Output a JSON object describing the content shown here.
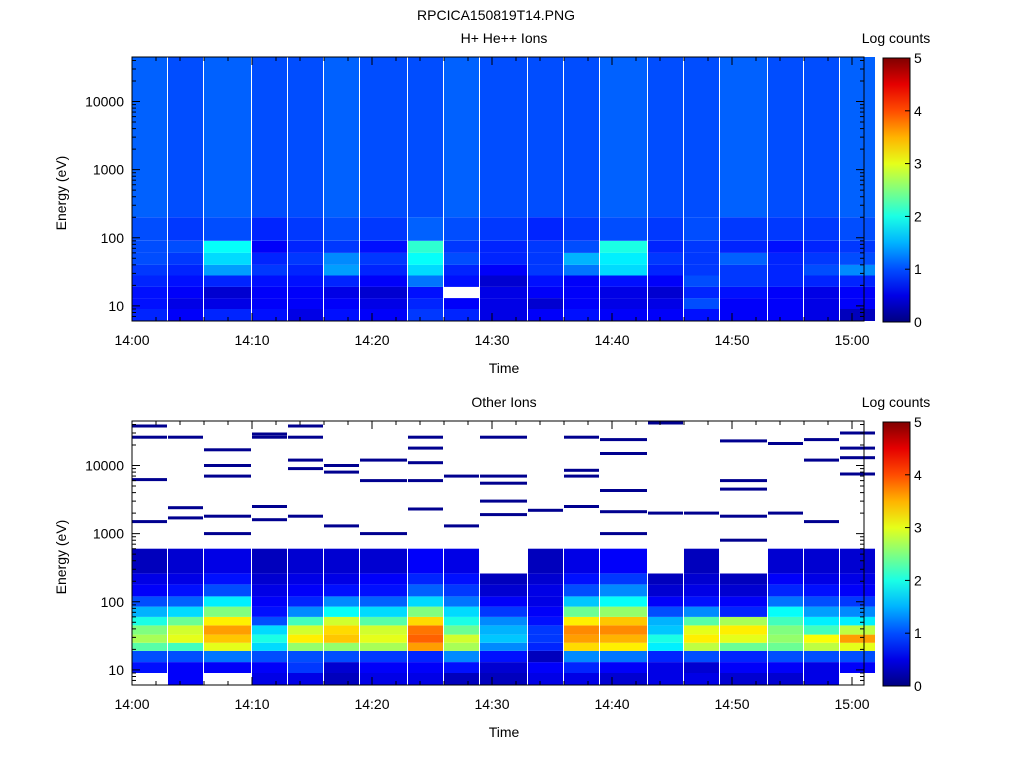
{
  "figure_title": "RPCICA150819T14.PNG",
  "chart_data": [
    {
      "type": "heatmap",
      "title": "H+ He++ Ions",
      "xlabel": "Time",
      "ylabel": "Energy (eV)",
      "yscale": "log",
      "xlim": [
        "14:00",
        "15:01"
      ],
      "ylim": [
        6,
        45000
      ],
      "x_ticks": [
        "14:00",
        "14:10",
        "14:20",
        "14:30",
        "14:40",
        "14:50",
        "15:00"
      ],
      "y_ticks": [
        "10",
        "100",
        "1000",
        "10000"
      ],
      "colorbar": {
        "label": "Log counts",
        "range": [
          0,
          5
        ],
        "ticks": [
          "0",
          "1",
          "2",
          "3",
          "4",
          "5"
        ]
      },
      "time_bins": [
        "14:00",
        "14:03",
        "14:06",
        "14:10",
        "14:13",
        "14:16",
        "14:19",
        "14:23",
        "14:26",
        "14:29",
        "14:33",
        "14:36",
        "14:39",
        "14:43",
        "14:46",
        "14:49",
        "14:53",
        "14:56",
        "14:59"
      ],
      "energy_bands_ev": [
        [
          6,
          9
        ],
        [
          9,
          13
        ],
        [
          13,
          19
        ],
        [
          19,
          28
        ],
        [
          28,
          40
        ],
        [
          40,
          60
        ],
        [
          60,
          90
        ],
        [
          90,
          200
        ],
        [
          200,
          45000
        ]
      ],
      "values": [
        [
          0.8,
          0.6,
          0.8,
          0.7,
          0.5,
          0.7,
          0.6,
          0.9,
          0.8,
          0.5,
          0.6,
          0.7,
          0.6,
          0.6,
          0.7,
          0.6,
          0.6,
          0.5,
          0.3
        ],
        [
          0.7,
          0.5,
          0.5,
          0.6,
          0.6,
          0.6,
          0.5,
          0.8,
          0.6,
          0.5,
          0.4,
          0.6,
          0.5,
          0.5,
          1.0,
          0.6,
          0.6,
          0.5,
          0.6
        ],
        [
          0.7,
          0.6,
          0.4,
          0.6,
          0.6,
          0.5,
          0.4,
          0.7,
          null,
          0.5,
          0.6,
          0.6,
          0.5,
          0.4,
          0.8,
          0.7,
          0.6,
          0.5,
          0.6
        ],
        [
          0.8,
          0.7,
          0.8,
          0.7,
          0.7,
          0.8,
          0.6,
          1.2,
          0.7,
          0.4,
          0.7,
          0.6,
          0.7,
          0.6,
          1.0,
          0.9,
          0.8,
          0.8,
          0.8
        ],
        [
          0.9,
          0.8,
          1.4,
          0.9,
          0.8,
          1.4,
          0.8,
          1.7,
          0.8,
          0.6,
          0.9,
          1.2,
          1.7,
          0.8,
          0.9,
          0.9,
          0.8,
          1.0,
          1.3
        ],
        [
          1.0,
          0.9,
          1.7,
          0.8,
          0.9,
          1.3,
          0.9,
          1.9,
          1.0,
          0.8,
          0.9,
          1.5,
          1.8,
          0.9,
          0.9,
          1.1,
          0.8,
          0.9,
          1.0
        ],
        [
          1.0,
          1.0,
          1.9,
          0.6,
          0.8,
          0.9,
          0.7,
          2.1,
          0.9,
          0.8,
          0.9,
          1.0,
          2.0,
          0.8,
          0.9,
          0.8,
          0.7,
          0.8,
          0.9
        ],
        [
          1.0,
          0.9,
          1.0,
          0.8,
          0.9,
          1.0,
          0.9,
          1.1,
          1.0,
          0.9,
          0.8,
          0.9,
          1.0,
          0.9,
          1.0,
          0.9,
          0.9,
          0.9,
          1.0
        ],
        [
          1.1,
          1.0,
          1.1,
          1.0,
          1.0,
          1.1,
          1.0,
          1.0,
          1.1,
          1.0,
          1.0,
          1.0,
          1.1,
          1.0,
          1.0,
          1.1,
          1.0,
          1.0,
          1.1
        ]
      ]
    },
    {
      "type": "heatmap",
      "title": "Other Ions",
      "xlabel": "Time",
      "ylabel": "Energy (eV)",
      "yscale": "log",
      "xlim": [
        "14:00",
        "15:01"
      ],
      "ylim": [
        6,
        45000
      ],
      "x_ticks": [
        "14:00",
        "14:10",
        "14:20",
        "14:30",
        "14:40",
        "14:50",
        "15:00"
      ],
      "y_ticks": [
        "10",
        "100",
        "1000",
        "10000"
      ],
      "colorbar": {
        "label": "Log counts",
        "range": [
          0,
          5
        ],
        "ticks": [
          "0",
          "1",
          "2",
          "3",
          "4",
          "5"
        ]
      },
      "time_bins": [
        "14:00",
        "14:03",
        "14:06",
        "14:10",
        "14:13",
        "14:16",
        "14:19",
        "14:23",
        "14:26",
        "14:29",
        "14:33",
        "14:36",
        "14:39",
        "14:43",
        "14:46",
        "14:49",
        "14:53",
        "14:56",
        "14:59"
      ],
      "energy_bands_ev": [
        [
          6,
          9
        ],
        [
          9,
          13
        ],
        [
          13,
          19
        ],
        [
          19,
          25
        ],
        [
          25,
          33
        ],
        [
          33,
          45
        ],
        [
          45,
          60
        ],
        [
          60,
          85
        ],
        [
          85,
          120
        ],
        [
          120,
          180
        ],
        [
          180,
          260
        ],
        [
          260,
          600
        ]
      ],
      "values": [
        [
          null,
          0.6,
          null,
          0.5,
          0.5,
          0.3,
          0.5,
          0.5,
          0.3,
          0.3,
          0.5,
          0.5,
          0.4,
          0.5,
          0.5,
          0.4,
          0.4,
          0.5,
          null
        ],
        [
          0.7,
          0.6,
          0.6,
          0.6,
          0.9,
          0.4,
          0.6,
          0.6,
          0.7,
          0.4,
          0.6,
          0.8,
          0.6,
          0.5,
          0.4,
          0.6,
          0.6,
          0.5,
          0.6
        ],
        [
          1.0,
          1.0,
          1.2,
          1.0,
          1.0,
          1.0,
          0.9,
          0.8,
          1.3,
          0.7,
          0.3,
          1.3,
          1.2,
          0.8,
          1.0,
          0.8,
          1.0,
          1.0,
          1.0
        ],
        [
          2.3,
          2.2,
          3.0,
          1.7,
          2.6,
          2.6,
          2.7,
          3.6,
          2.7,
          1.3,
          0.8,
          3.3,
          3.2,
          1.8,
          2.8,
          2.4,
          2.4,
          2.8,
          3.0
        ],
        [
          2.7,
          3.0,
          3.4,
          2.0,
          3.2,
          3.4,
          3.0,
          3.9,
          2.9,
          1.6,
          0.9,
          3.6,
          3.5,
          2.0,
          3.2,
          3.0,
          2.6,
          3.1,
          3.6
        ],
        [
          2.5,
          2.9,
          3.6,
          1.7,
          2.9,
          3.3,
          2.9,
          3.8,
          2.4,
          1.5,
          0.9,
          3.7,
          3.7,
          1.6,
          3.0,
          3.2,
          2.5,
          2.2,
          2.8
        ],
        [
          2.0,
          2.4,
          3.2,
          1.0,
          2.2,
          2.9,
          2.3,
          3.3,
          2.0,
          1.3,
          0.7,
          3.2,
          3.4,
          1.5,
          2.3,
          2.7,
          2.2,
          1.8,
          1.8
        ],
        [
          1.5,
          1.7,
          2.5,
          0.7,
          1.3,
          1.9,
          1.7,
          2.5,
          1.7,
          0.9,
          0.6,
          2.4,
          2.6,
          1.0,
          1.3,
          0.8,
          1.9,
          1.4,
          1.3
        ],
        [
          1.0,
          1.1,
          1.8,
          0.6,
          0.8,
          1.3,
          1.1,
          1.7,
          1.2,
          0.6,
          0.5,
          1.6,
          1.9,
          0.6,
          0.7,
          0.6,
          1.2,
          1.0,
          0.9
        ],
        [
          0.6,
          0.7,
          1.0,
          0.5,
          0.6,
          0.7,
          0.7,
          1.1,
          0.9,
          0.4,
          0.5,
          1.0,
          1.3,
          0.4,
          0.5,
          0.4,
          0.8,
          0.7,
          0.6
        ],
        [
          0.5,
          0.5,
          0.7,
          0.4,
          0.5,
          0.5,
          0.6,
          0.8,
          0.7,
          0.3,
          0.4,
          0.7,
          0.9,
          0.3,
          0.4,
          0.3,
          0.6,
          0.5,
          0.5
        ],
        [
          0.3,
          0.4,
          0.5,
          0.3,
          0.4,
          0.4,
          0.4,
          0.6,
          0.5,
          null,
          0.3,
          0.5,
          0.6,
          null,
          0.3,
          null,
          0.4,
          0.4,
          0.4
        ]
      ],
      "sparse_lines_ev": [
        [
          1500,
          6200,
          26000,
          38000,
          null
        ],
        [
          2400,
          1700,
          26000,
          null,
          null
        ],
        [
          1800,
          1000,
          17000,
          10000,
          7000
        ],
        [
          2500,
          1600,
          29000,
          26000,
          null
        ],
        [
          1800,
          9000,
          12000,
          26000,
          38000
        ],
        [
          1300,
          10000,
          8000,
          null,
          null
        ],
        [
          1000,
          12000,
          6000,
          null,
          null
        ],
        [
          2300,
          11000,
          18000,
          26000,
          6000
        ],
        [
          1300,
          7000,
          null,
          null,
          null
        ],
        [
          1900,
          3000,
          5500,
          7000,
          26000
        ],
        [
          2200,
          null,
          null,
          null,
          null
        ],
        [
          2500,
          7000,
          8500,
          26000,
          null
        ],
        [
          1000,
          2100,
          4300,
          15000,
          24000
        ],
        [
          2000,
          42000,
          null,
          null,
          null
        ],
        [
          2000,
          null,
          null,
          null,
          null
        ],
        [
          800,
          1800,
          4500,
          6000,
          23000
        ],
        [
          2000,
          21000,
          null,
          null,
          null
        ],
        [
          1500,
          12000,
          24000,
          null,
          null
        ],
        [
          7500,
          13000,
          18000,
          30000,
          null
        ]
      ]
    }
  ]
}
